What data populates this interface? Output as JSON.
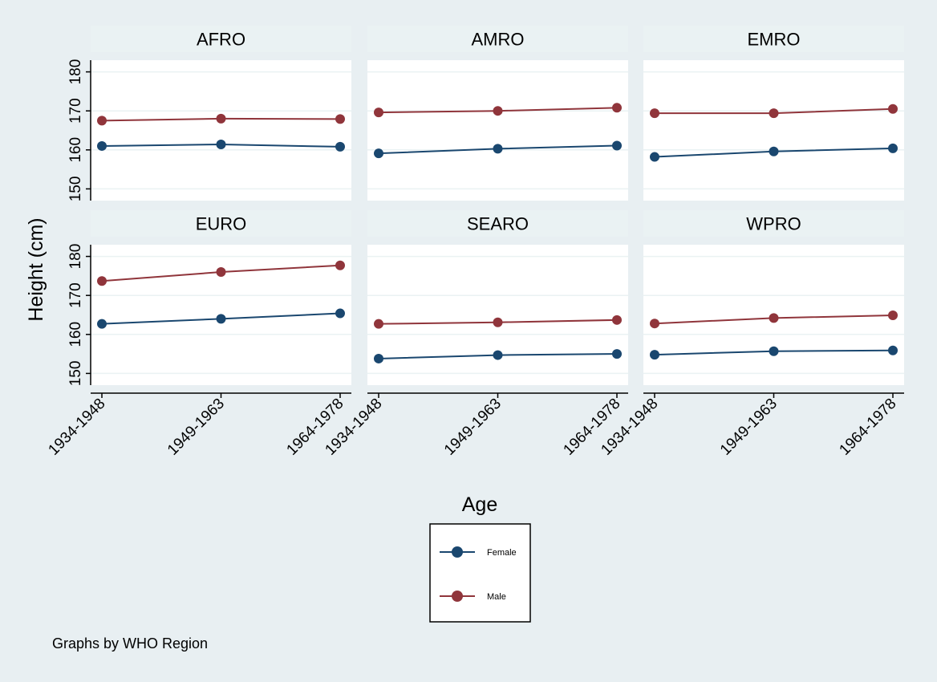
{
  "chart_data": {
    "type": "line",
    "layout": "small-multiples-3x2",
    "categories": [
      "1934-1948",
      "1949-1963",
      "1964-1978"
    ],
    "xlabel": "Age",
    "ylabel": "Height (cm)",
    "ylim": [
      147,
      183
    ],
    "yticks": [
      "150",
      "160",
      "170",
      "180"
    ],
    "grid": "horizontal",
    "legend_position": "bottom-center",
    "note": "Graphs by WHO Region",
    "colors": {
      "Female": "#1a476f",
      "Male": "#90353b",
      "panel_header": "#eaf2f3",
      "background": "#e8eff2"
    },
    "legend": [
      {
        "name": "Female",
        "color": "#1a476f"
      },
      {
        "name": "Male",
        "color": "#90353b"
      }
    ],
    "panels": [
      {
        "title": "AFRO",
        "series": [
          {
            "name": "Female",
            "values": [
              161.0,
              161.4,
              160.8
            ]
          },
          {
            "name": "Male",
            "values": [
              167.5,
              168.0,
              167.9
            ]
          }
        ]
      },
      {
        "title": "AMRO",
        "series": [
          {
            "name": "Female",
            "values": [
              159.1,
              160.3,
              161.1
            ]
          },
          {
            "name": "Male",
            "values": [
              169.6,
              170.0,
              170.8
            ]
          }
        ]
      },
      {
        "title": "EMRO",
        "series": [
          {
            "name": "Female",
            "values": [
              158.2,
              159.6,
              160.4
            ]
          },
          {
            "name": "Male",
            "values": [
              169.4,
              169.4,
              170.5
            ]
          }
        ]
      },
      {
        "title": "EURO",
        "series": [
          {
            "name": "Female",
            "values": [
              162.7,
              164.0,
              165.4
            ]
          },
          {
            "name": "Male",
            "values": [
              173.7,
              176.0,
              177.7
            ]
          }
        ]
      },
      {
        "title": "SEARO",
        "series": [
          {
            "name": "Female",
            "values": [
              153.8,
              154.7,
              155.0
            ]
          },
          {
            "name": "Male",
            "values": [
              162.7,
              163.1,
              163.7
            ]
          }
        ]
      },
      {
        "title": "WPRO",
        "series": [
          {
            "name": "Female",
            "values": [
              154.8,
              155.7,
              155.9
            ]
          },
          {
            "name": "Male",
            "values": [
              162.8,
              164.2,
              164.9
            ]
          }
        ]
      }
    ]
  }
}
